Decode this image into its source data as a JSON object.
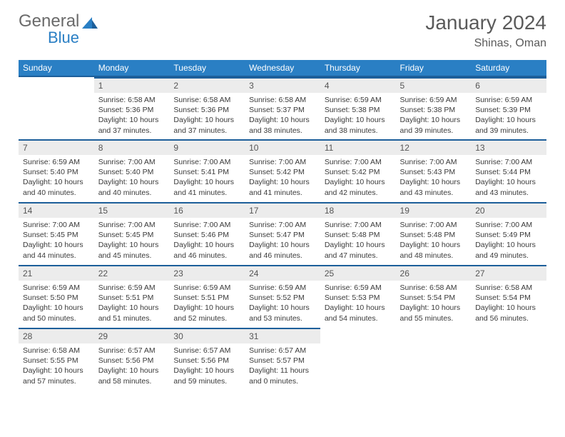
{
  "logo": {
    "part1": "General",
    "part2": "Blue"
  },
  "header": {
    "title": "January 2024",
    "location": "Shinas, Oman"
  },
  "colors": {
    "header_bg": "#2a7fc4",
    "header_border": "#1d5f9a",
    "daynum_bg": "#ececec",
    "text": "#333333",
    "muted": "#5a5a5a"
  },
  "weekdays": [
    "Sunday",
    "Monday",
    "Tuesday",
    "Wednesday",
    "Thursday",
    "Friday",
    "Saturday"
  ],
  "weeks": [
    [
      {
        "num": "",
        "sunrise": "",
        "sunset": "",
        "daylight": ""
      },
      {
        "num": "1",
        "sunrise": "Sunrise: 6:58 AM",
        "sunset": "Sunset: 5:36 PM",
        "daylight": "Daylight: 10 hours and 37 minutes."
      },
      {
        "num": "2",
        "sunrise": "Sunrise: 6:58 AM",
        "sunset": "Sunset: 5:36 PM",
        "daylight": "Daylight: 10 hours and 37 minutes."
      },
      {
        "num": "3",
        "sunrise": "Sunrise: 6:58 AM",
        "sunset": "Sunset: 5:37 PM",
        "daylight": "Daylight: 10 hours and 38 minutes."
      },
      {
        "num": "4",
        "sunrise": "Sunrise: 6:59 AM",
        "sunset": "Sunset: 5:38 PM",
        "daylight": "Daylight: 10 hours and 38 minutes."
      },
      {
        "num": "5",
        "sunrise": "Sunrise: 6:59 AM",
        "sunset": "Sunset: 5:38 PM",
        "daylight": "Daylight: 10 hours and 39 minutes."
      },
      {
        "num": "6",
        "sunrise": "Sunrise: 6:59 AM",
        "sunset": "Sunset: 5:39 PM",
        "daylight": "Daylight: 10 hours and 39 minutes."
      }
    ],
    [
      {
        "num": "7",
        "sunrise": "Sunrise: 6:59 AM",
        "sunset": "Sunset: 5:40 PM",
        "daylight": "Daylight: 10 hours and 40 minutes."
      },
      {
        "num": "8",
        "sunrise": "Sunrise: 7:00 AM",
        "sunset": "Sunset: 5:40 PM",
        "daylight": "Daylight: 10 hours and 40 minutes."
      },
      {
        "num": "9",
        "sunrise": "Sunrise: 7:00 AM",
        "sunset": "Sunset: 5:41 PM",
        "daylight": "Daylight: 10 hours and 41 minutes."
      },
      {
        "num": "10",
        "sunrise": "Sunrise: 7:00 AM",
        "sunset": "Sunset: 5:42 PM",
        "daylight": "Daylight: 10 hours and 41 minutes."
      },
      {
        "num": "11",
        "sunrise": "Sunrise: 7:00 AM",
        "sunset": "Sunset: 5:42 PM",
        "daylight": "Daylight: 10 hours and 42 minutes."
      },
      {
        "num": "12",
        "sunrise": "Sunrise: 7:00 AM",
        "sunset": "Sunset: 5:43 PM",
        "daylight": "Daylight: 10 hours and 43 minutes."
      },
      {
        "num": "13",
        "sunrise": "Sunrise: 7:00 AM",
        "sunset": "Sunset: 5:44 PM",
        "daylight": "Daylight: 10 hours and 43 minutes."
      }
    ],
    [
      {
        "num": "14",
        "sunrise": "Sunrise: 7:00 AM",
        "sunset": "Sunset: 5:45 PM",
        "daylight": "Daylight: 10 hours and 44 minutes."
      },
      {
        "num": "15",
        "sunrise": "Sunrise: 7:00 AM",
        "sunset": "Sunset: 5:45 PM",
        "daylight": "Daylight: 10 hours and 45 minutes."
      },
      {
        "num": "16",
        "sunrise": "Sunrise: 7:00 AM",
        "sunset": "Sunset: 5:46 PM",
        "daylight": "Daylight: 10 hours and 46 minutes."
      },
      {
        "num": "17",
        "sunrise": "Sunrise: 7:00 AM",
        "sunset": "Sunset: 5:47 PM",
        "daylight": "Daylight: 10 hours and 46 minutes."
      },
      {
        "num": "18",
        "sunrise": "Sunrise: 7:00 AM",
        "sunset": "Sunset: 5:48 PM",
        "daylight": "Daylight: 10 hours and 47 minutes."
      },
      {
        "num": "19",
        "sunrise": "Sunrise: 7:00 AM",
        "sunset": "Sunset: 5:48 PM",
        "daylight": "Daylight: 10 hours and 48 minutes."
      },
      {
        "num": "20",
        "sunrise": "Sunrise: 7:00 AM",
        "sunset": "Sunset: 5:49 PM",
        "daylight": "Daylight: 10 hours and 49 minutes."
      }
    ],
    [
      {
        "num": "21",
        "sunrise": "Sunrise: 6:59 AM",
        "sunset": "Sunset: 5:50 PM",
        "daylight": "Daylight: 10 hours and 50 minutes."
      },
      {
        "num": "22",
        "sunrise": "Sunrise: 6:59 AM",
        "sunset": "Sunset: 5:51 PM",
        "daylight": "Daylight: 10 hours and 51 minutes."
      },
      {
        "num": "23",
        "sunrise": "Sunrise: 6:59 AM",
        "sunset": "Sunset: 5:51 PM",
        "daylight": "Daylight: 10 hours and 52 minutes."
      },
      {
        "num": "24",
        "sunrise": "Sunrise: 6:59 AM",
        "sunset": "Sunset: 5:52 PM",
        "daylight": "Daylight: 10 hours and 53 minutes."
      },
      {
        "num": "25",
        "sunrise": "Sunrise: 6:59 AM",
        "sunset": "Sunset: 5:53 PM",
        "daylight": "Daylight: 10 hours and 54 minutes."
      },
      {
        "num": "26",
        "sunrise": "Sunrise: 6:58 AM",
        "sunset": "Sunset: 5:54 PM",
        "daylight": "Daylight: 10 hours and 55 minutes."
      },
      {
        "num": "27",
        "sunrise": "Sunrise: 6:58 AM",
        "sunset": "Sunset: 5:54 PM",
        "daylight": "Daylight: 10 hours and 56 minutes."
      }
    ],
    [
      {
        "num": "28",
        "sunrise": "Sunrise: 6:58 AM",
        "sunset": "Sunset: 5:55 PM",
        "daylight": "Daylight: 10 hours and 57 minutes."
      },
      {
        "num": "29",
        "sunrise": "Sunrise: 6:57 AM",
        "sunset": "Sunset: 5:56 PM",
        "daylight": "Daylight: 10 hours and 58 minutes."
      },
      {
        "num": "30",
        "sunrise": "Sunrise: 6:57 AM",
        "sunset": "Sunset: 5:56 PM",
        "daylight": "Daylight: 10 hours and 59 minutes."
      },
      {
        "num": "31",
        "sunrise": "Sunrise: 6:57 AM",
        "sunset": "Sunset: 5:57 PM",
        "daylight": "Daylight: 11 hours and 0 minutes."
      },
      {
        "num": "",
        "sunrise": "",
        "sunset": "",
        "daylight": ""
      },
      {
        "num": "",
        "sunrise": "",
        "sunset": "",
        "daylight": ""
      },
      {
        "num": "",
        "sunrise": "",
        "sunset": "",
        "daylight": ""
      }
    ]
  ]
}
